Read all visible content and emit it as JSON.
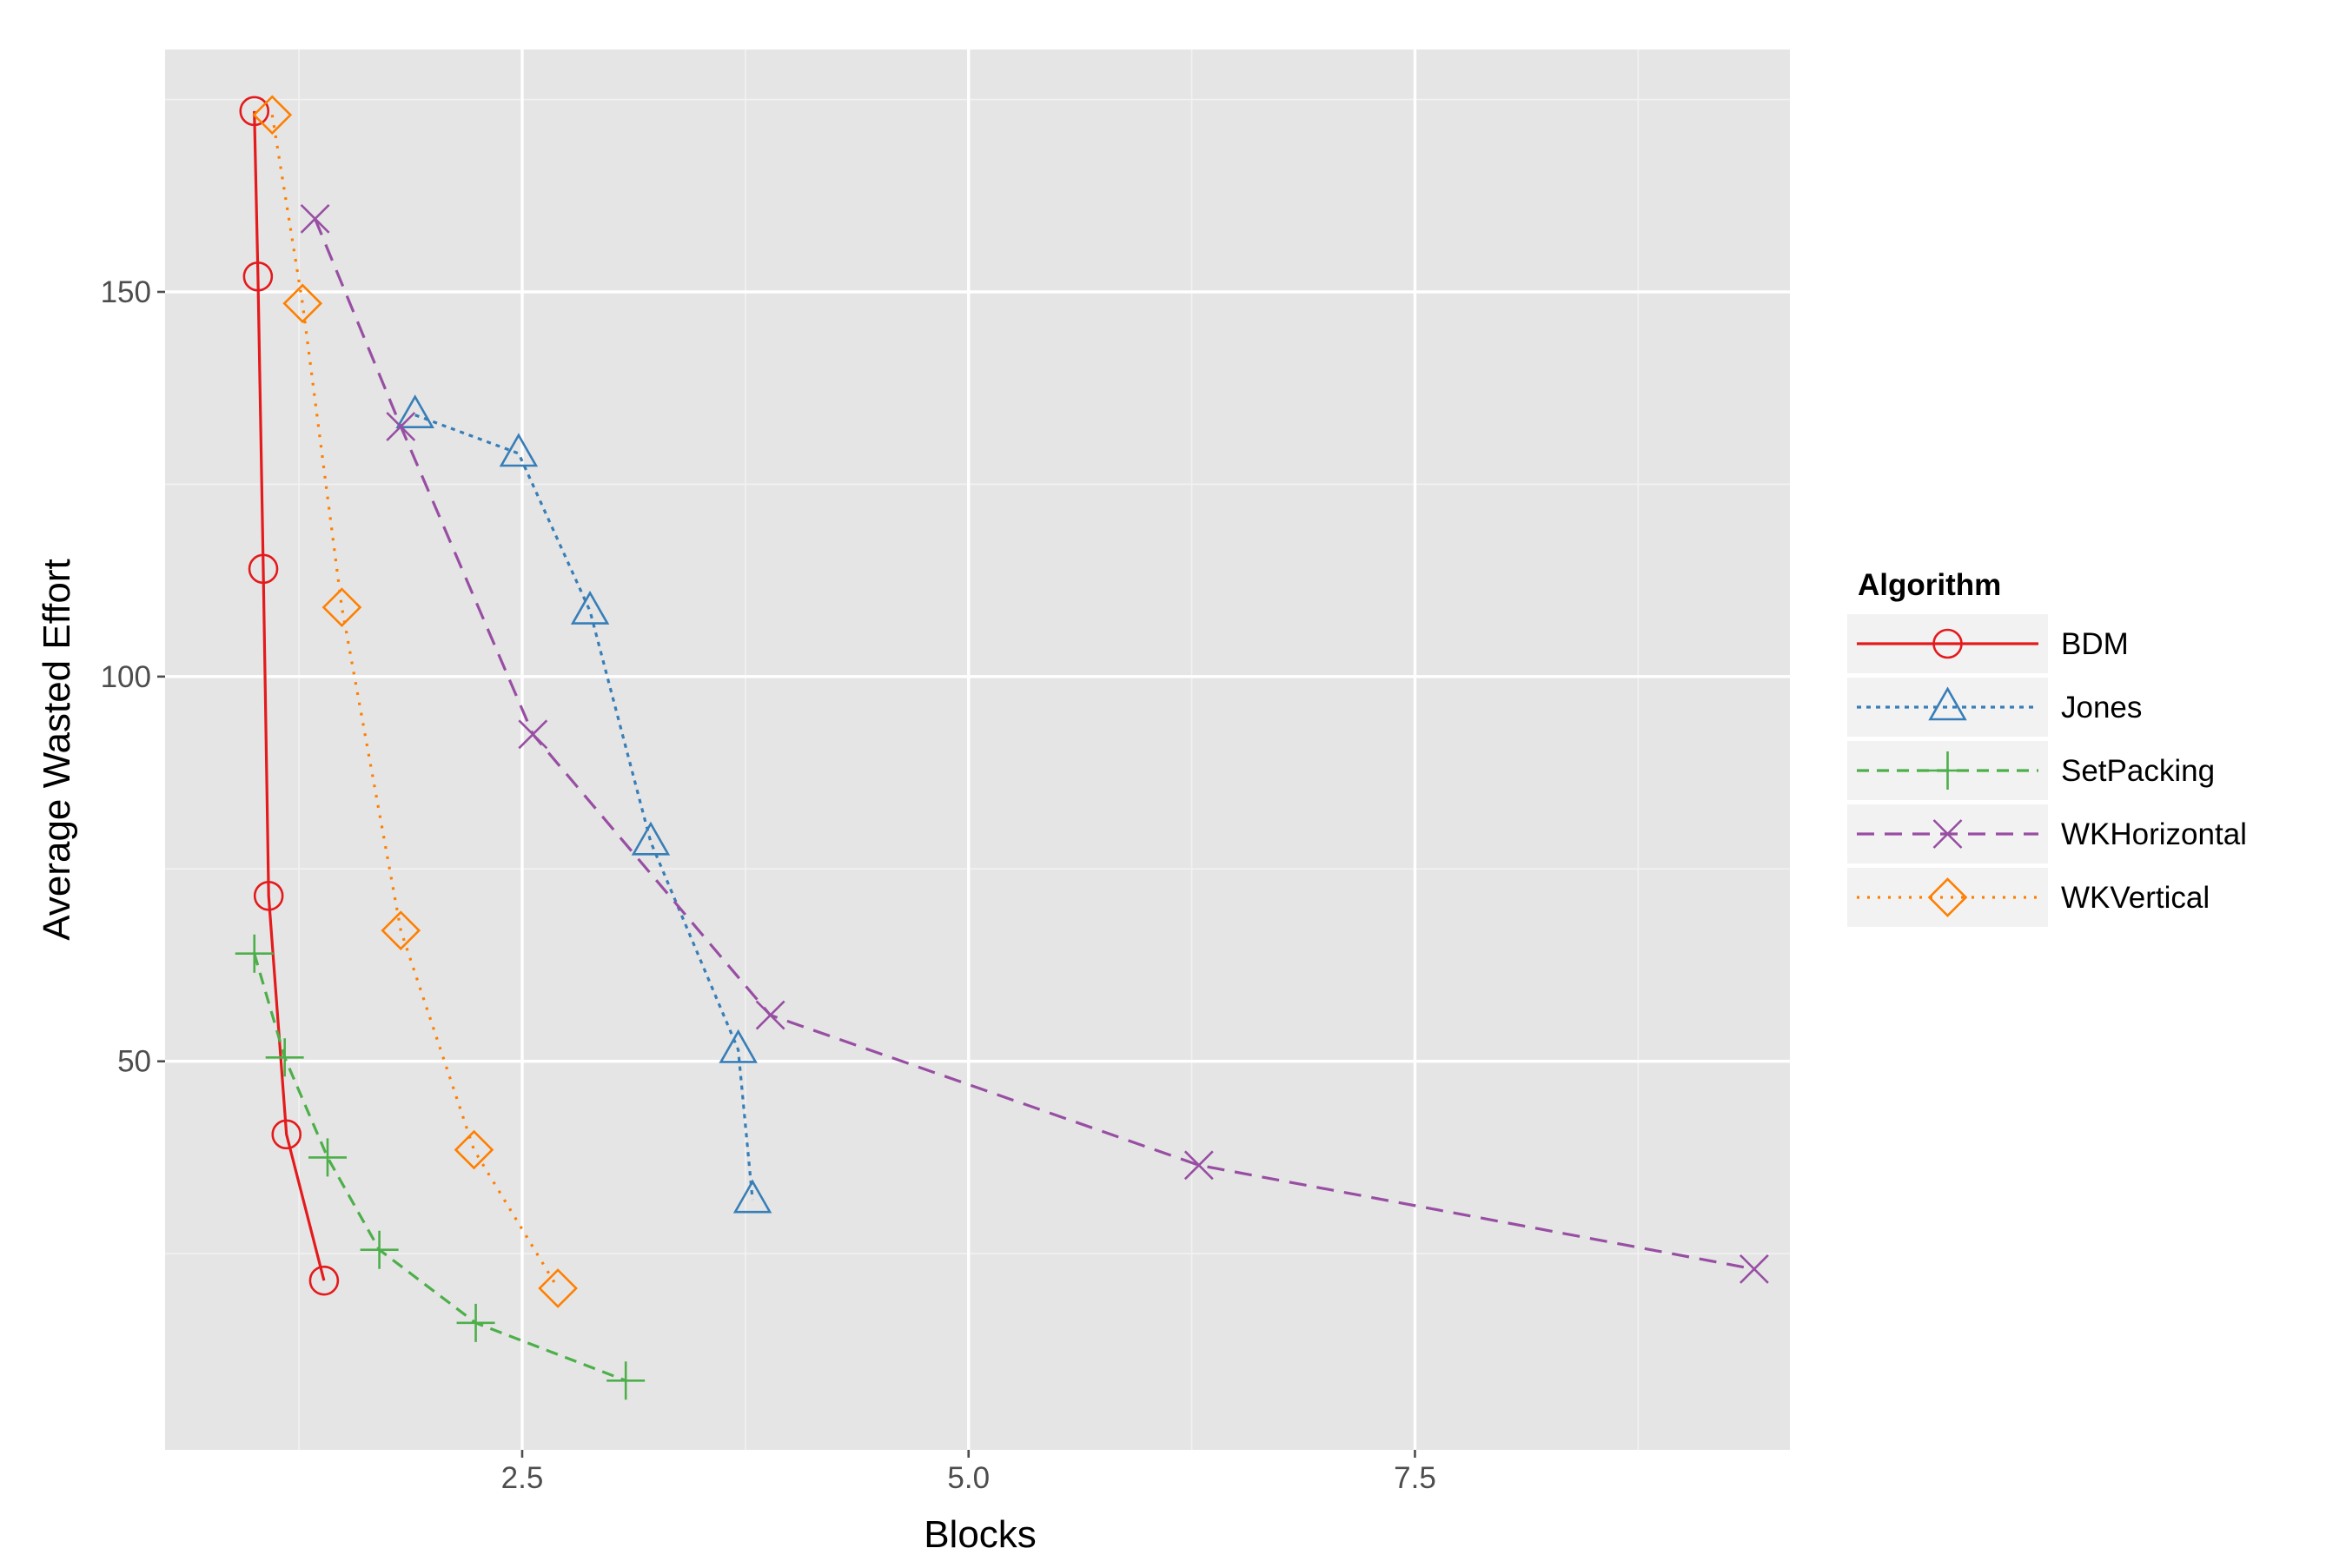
{
  "chart_data": {
    "type": "line",
    "xlabel": "Blocks",
    "ylabel": "Average Wasted Effort",
    "xlim": [
      0.5,
      9.6
    ],
    "ylim": [
      -0.5,
      181.5
    ],
    "x_ticks": [
      2.5,
      5.0,
      7.5
    ],
    "x_tick_labels": [
      "2.5",
      "5.0",
      "7.5"
    ],
    "y_ticks": [
      50,
      100,
      150
    ],
    "y_tick_labels": [
      "50",
      "100",
      "150"
    ],
    "grid": true,
    "legend_title": "Algorithm",
    "legend_position": "right",
    "series": [
      {
        "name": "BDM",
        "color": "#e41a1c",
        "dash": "solid",
        "marker": "circle",
        "x": [
          1.0,
          1.02,
          1.05,
          1.08,
          1.18,
          1.39
        ],
        "y": [
          173.5,
          152.0,
          114.0,
          71.5,
          40.5,
          21.5
        ]
      },
      {
        "name": "Jones",
        "color": "#377eb8",
        "dash": "dotted-fine",
        "marker": "triangle",
        "x": [
          1.9,
          2.48,
          2.88,
          3.22,
          3.71,
          3.79
        ],
        "y": [
          134.0,
          129.0,
          108.5,
          78.5,
          51.5,
          32.0
        ]
      },
      {
        "name": "SetPacking",
        "color": "#4daf4a",
        "dash": "dashed",
        "marker": "plus",
        "x": [
          1.0,
          1.17,
          1.41,
          1.7,
          2.24,
          3.08
        ],
        "y": [
          64.0,
          50.5,
          37.5,
          25.5,
          16.0,
          8.5
        ]
      },
      {
        "name": "WKHorizontal",
        "color": "#984ea3",
        "dash": "long-dashed",
        "marker": "cross",
        "x": [
          1.34,
          1.82,
          2.56,
          3.89,
          6.29,
          9.4
        ],
        "y": [
          159.5,
          132.5,
          92.5,
          56.0,
          36.5,
          23.0
        ]
      },
      {
        "name": "WKVertical",
        "color": "#ff7f00",
        "dash": "dotted",
        "marker": "diamond",
        "x": [
          1.1,
          1.27,
          1.49,
          1.82,
          2.23,
          2.7
        ],
        "y": [
          173.0,
          148.5,
          109.0,
          67.0,
          38.5,
          20.5
        ]
      }
    ]
  }
}
